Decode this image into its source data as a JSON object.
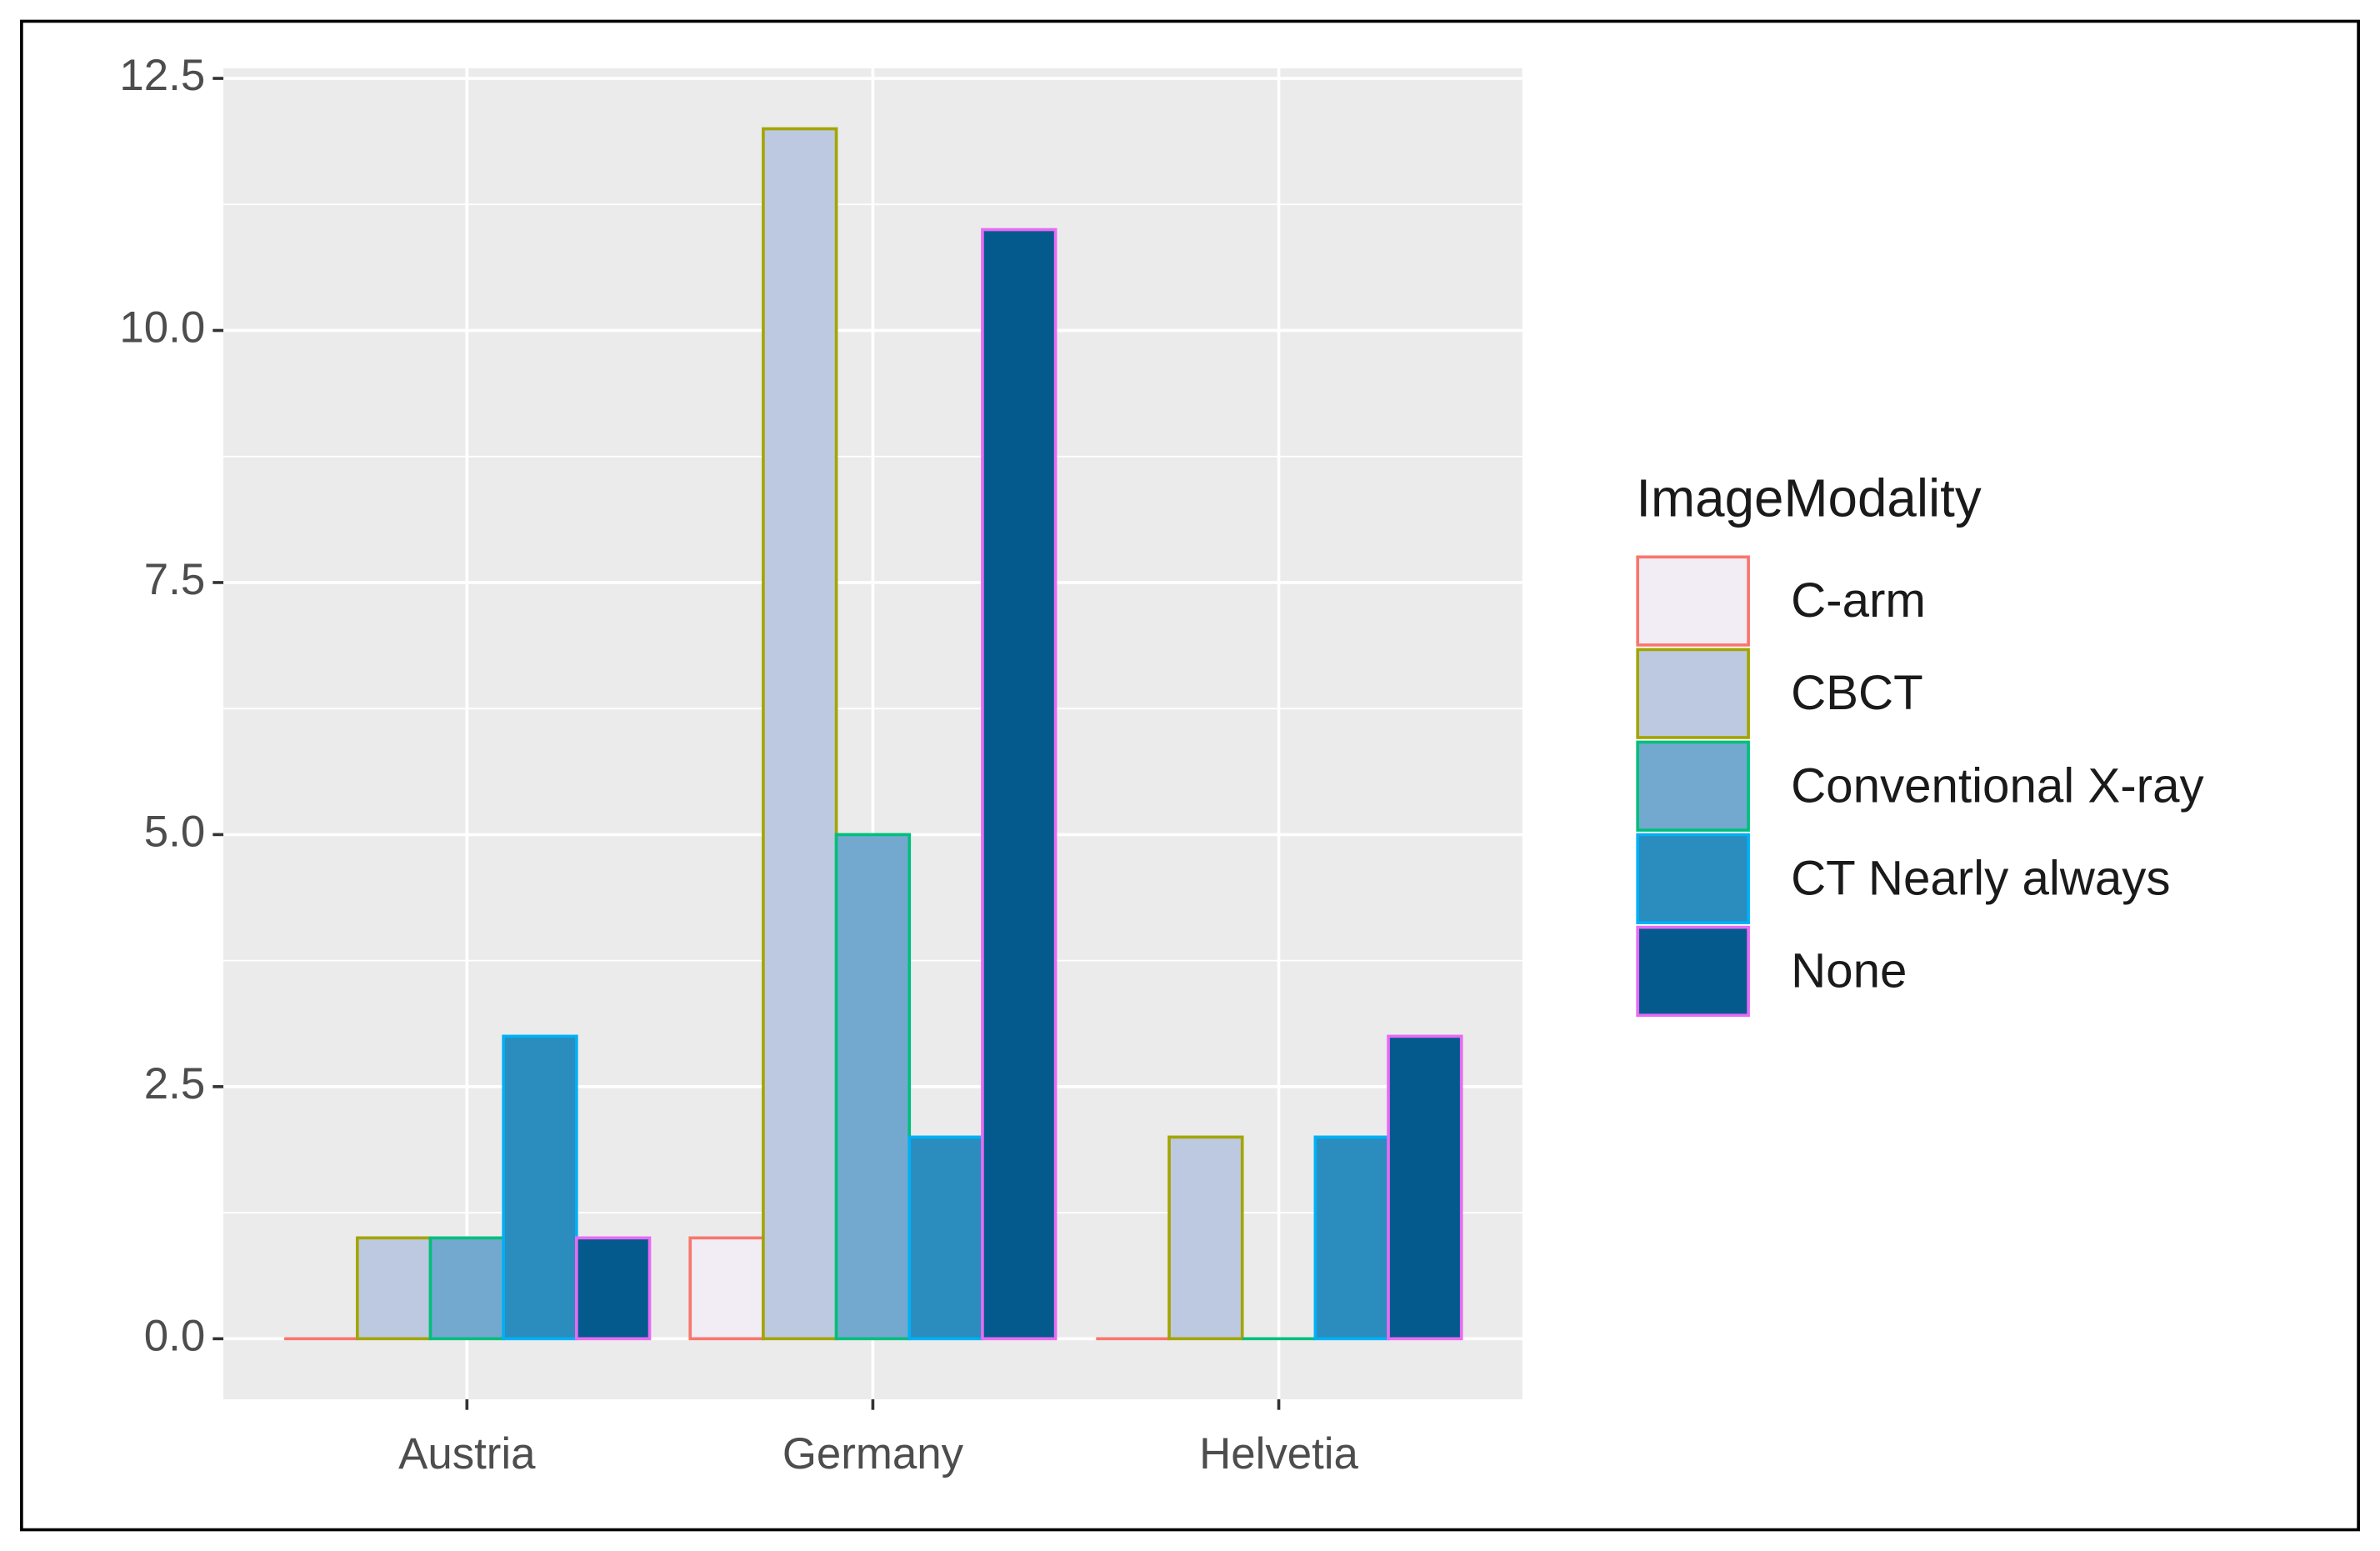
{
  "chart_data": {
    "type": "bar",
    "categories": [
      "Austria",
      "Germany",
      "Helvetia"
    ],
    "legend_title": "ImageModality",
    "series": [
      {
        "name": "C-arm",
        "color": "#f2ecf4",
        "outline": "#f8766d",
        "values": [
          0,
          1,
          0
        ]
      },
      {
        "name": "CBCT",
        "color": "#bdc9e1",
        "outline": "#a3a500",
        "values": [
          1,
          12,
          2
        ]
      },
      {
        "name": "Conventional X-ray",
        "color": "#74a9cf",
        "outline": "#00bf7d",
        "values": [
          1,
          5,
          0
        ]
      },
      {
        "name": "CT Nearly always",
        "color": "#2b8cbe",
        "outline": "#00b0f6",
        "values": [
          3,
          2,
          2
        ]
      },
      {
        "name": "None",
        "color": "#045a8d",
        "outline": "#e76bf3",
        "values": [
          1,
          11,
          3
        ]
      }
    ],
    "ylim": [
      -0.6,
      12.6
    ],
    "yticks": [
      {
        "value": 0,
        "label": "0.0"
      },
      2.5,
      {
        "value": 5,
        "label": "5.0"
      },
      7.5,
      {
        "value": 10,
        "label": "10.0"
      },
      12.5
    ],
    "grid": true,
    "legend": "right"
  }
}
